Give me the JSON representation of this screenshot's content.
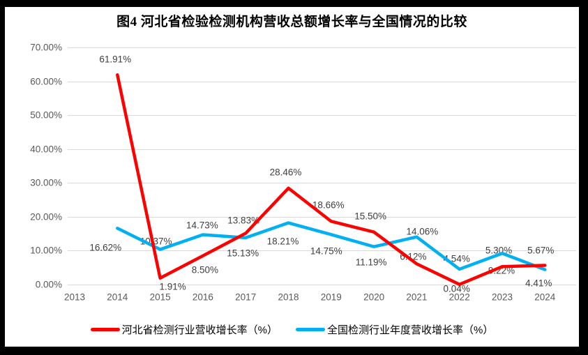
{
  "title": "图4 河北省检验检测机构营收总额增长率与全国情况的比较",
  "colors": {
    "frame_border": "#000000",
    "background": "#ffffff",
    "gridline": "#d9d9d9",
    "axis_text": "#595959",
    "data_label_text": "#3f3f3f",
    "hebei_red": "#ff0000",
    "national_blue": "#00b0f0"
  },
  "chart_data": {
    "type": "line",
    "title": "图4 河北省检验检测机构营收总额增长率与全国情况的比较",
    "categories": [
      "2013",
      "2014",
      "2015",
      "2016",
      "2017",
      "2018",
      "2019",
      "2020",
      "2021",
      "2022",
      "2023",
      "2024"
    ],
    "y_axis": {
      "min": 0,
      "max": 70,
      "step": 10,
      "tick_labels": [
        "70.00%",
        "60.00%",
        "50.00%",
        "40.00%",
        "30.00%",
        "20.00%",
        "10.00%",
        "0.00%"
      ]
    },
    "grid": true,
    "legend_position": "bottom",
    "label_format": "0.00%",
    "series": [
      {
        "name": "全国检测行业年度营收增长率（%）",
        "color": "#00b0f0",
        "start_index": 1,
        "values": [
          16.62,
          10.37,
          14.73,
          13.83,
          18.21,
          14.75,
          11.19,
          14.06,
          4.54,
          9.22,
          4.41
        ],
        "label_offsets": [
          [
            -17,
            28
          ],
          [
            -6,
            -12
          ],
          [
            -1,
            -13
          ],
          [
            -3,
            -25
          ],
          [
            -8,
            26
          ],
          [
            -7,
            24
          ],
          [
            -4,
            22
          ],
          [
            8,
            -8
          ],
          [
            -4,
            -15
          ],
          [
            -1,
            25
          ],
          [
            -9,
            19
          ]
        ]
      },
      {
        "name": "河北省检测行业营收增长率（%）",
        "color": "#ff0000",
        "start_index": 1,
        "values": [
          61.91,
          1.91,
          8.5,
          15.13,
          28.46,
          18.66,
          15.5,
          6.12,
          0.04,
          5.3,
          5.67
        ],
        "label_offsets": [
          [
            -3,
            -22
          ],
          [
            18,
            12
          ],
          [
            3,
            20
          ],
          [
            -4,
            28
          ],
          [
            -4,
            -23
          ],
          [
            -4,
            -23
          ],
          [
            -5,
            -23
          ],
          [
            -5,
            -10
          ],
          [
            -4,
            6
          ],
          [
            -5,
            -23
          ],
          [
            -6,
            -21
          ]
        ]
      }
    ]
  },
  "legend": {
    "items": [
      {
        "label": "河北省检测行业营收增长率（%）",
        "color": "#ff0000"
      },
      {
        "label": "全国检测行业年度营收增长率（%）",
        "color": "#00b0f0"
      }
    ]
  }
}
